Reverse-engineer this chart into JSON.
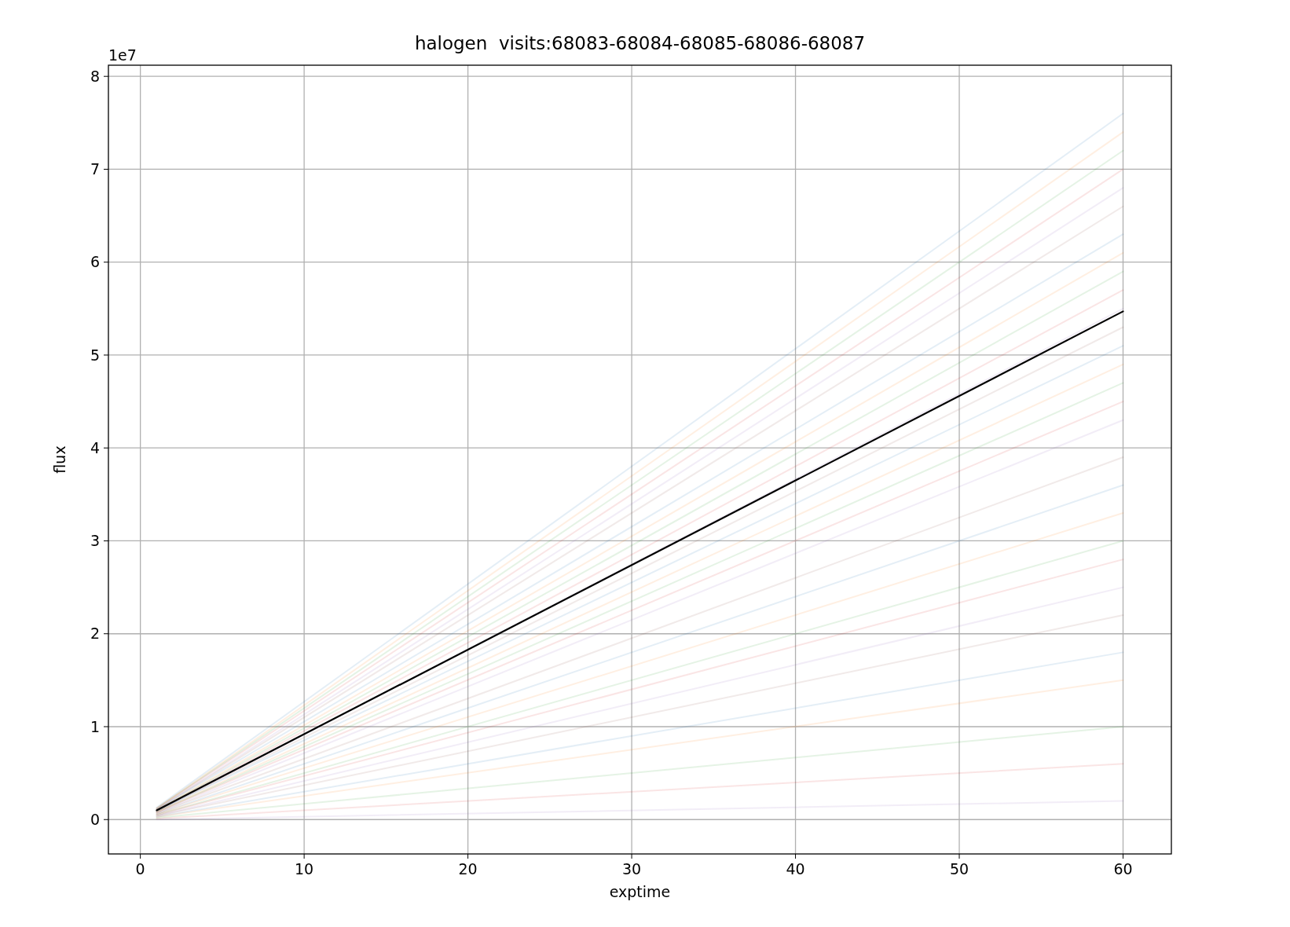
{
  "chart_data": {
    "type": "line",
    "title": "halogen  visits:68083-68084-68085-68086-68087",
    "xlabel": "exptime",
    "ylabel": "flux",
    "annotations": [
      "1e7"
    ],
    "xlim": [
      -1.95,
      62.95
    ],
    "xticks": [
      0,
      10,
      20,
      30,
      40,
      50,
      60
    ],
    "ylim": [
      -0.37,
      8.12
    ],
    "yticks": [
      0,
      1,
      2,
      3,
      4,
      5,
      6,
      7,
      8
    ],
    "grid": true,
    "marker": "none",
    "line_style": "solid",
    "x": [
      1,
      60
    ],
    "series": [
      {
        "color": "#1f77b4",
        "values": [
          0.13,
          7.6
        ]
      },
      {
        "color": "#ff7f0e",
        "values": [
          0.12,
          7.4
        ]
      },
      {
        "color": "#2ca02c",
        "values": [
          0.12,
          7.2
        ]
      },
      {
        "color": "#d62728",
        "values": [
          0.12,
          7.0
        ]
      },
      {
        "color": "#9467bd",
        "values": [
          0.11,
          6.8
        ]
      },
      {
        "color": "#8c564b",
        "values": [
          0.11,
          6.6
        ]
      },
      {
        "color": "#1f77b4",
        "values": [
          0.11,
          6.3
        ]
      },
      {
        "color": "#ff7f0e",
        "values": [
          0.1,
          6.1
        ]
      },
      {
        "color": "#2ca02c",
        "values": [
          0.1,
          5.9
        ]
      },
      {
        "color": "#d62728",
        "values": [
          0.1,
          5.7
        ]
      },
      {
        "color": "#9467bd",
        "values": [
          0.09,
          5.5
        ]
      },
      {
        "color": "#8c564b",
        "values": [
          0.09,
          5.3
        ]
      },
      {
        "color": "#1f77b4",
        "values": [
          0.09,
          5.1
        ]
      },
      {
        "color": "#ff7f0e",
        "values": [
          0.08,
          4.9
        ]
      },
      {
        "color": "#2ca02c",
        "values": [
          0.08,
          4.7
        ]
      },
      {
        "color": "#d62728",
        "values": [
          0.08,
          4.5
        ]
      },
      {
        "color": "#9467bd",
        "values": [
          0.07,
          4.3
        ]
      },
      {
        "color": "#8c564b",
        "values": [
          0.07,
          3.9
        ]
      },
      {
        "color": "#1f77b4",
        "values": [
          0.06,
          3.6
        ]
      },
      {
        "color": "#ff7f0e",
        "values": [
          0.06,
          3.3
        ]
      },
      {
        "color": "#2ca02c",
        "values": [
          0.05,
          3.0
        ]
      },
      {
        "color": "#d62728",
        "values": [
          0.05,
          2.8
        ]
      },
      {
        "color": "#9467bd",
        "values": [
          0.04,
          2.5
        ]
      },
      {
        "color": "#8c564b",
        "values": [
          0.04,
          2.2
        ]
      },
      {
        "color": "#1f77b4",
        "values": [
          0.03,
          1.8
        ]
      },
      {
        "color": "#ff7f0e",
        "values": [
          0.03,
          1.5
        ]
      },
      {
        "color": "#2ca02c",
        "values": [
          0.02,
          1.0
        ]
      },
      {
        "color": "#d62728",
        "values": [
          0.01,
          0.6
        ]
      },
      {
        "color": "#9467bd",
        "values": [
          0.0,
          0.2
        ]
      },
      {
        "color": "#000000",
        "values": [
          0.1,
          5.47
        ]
      }
    ]
  }
}
